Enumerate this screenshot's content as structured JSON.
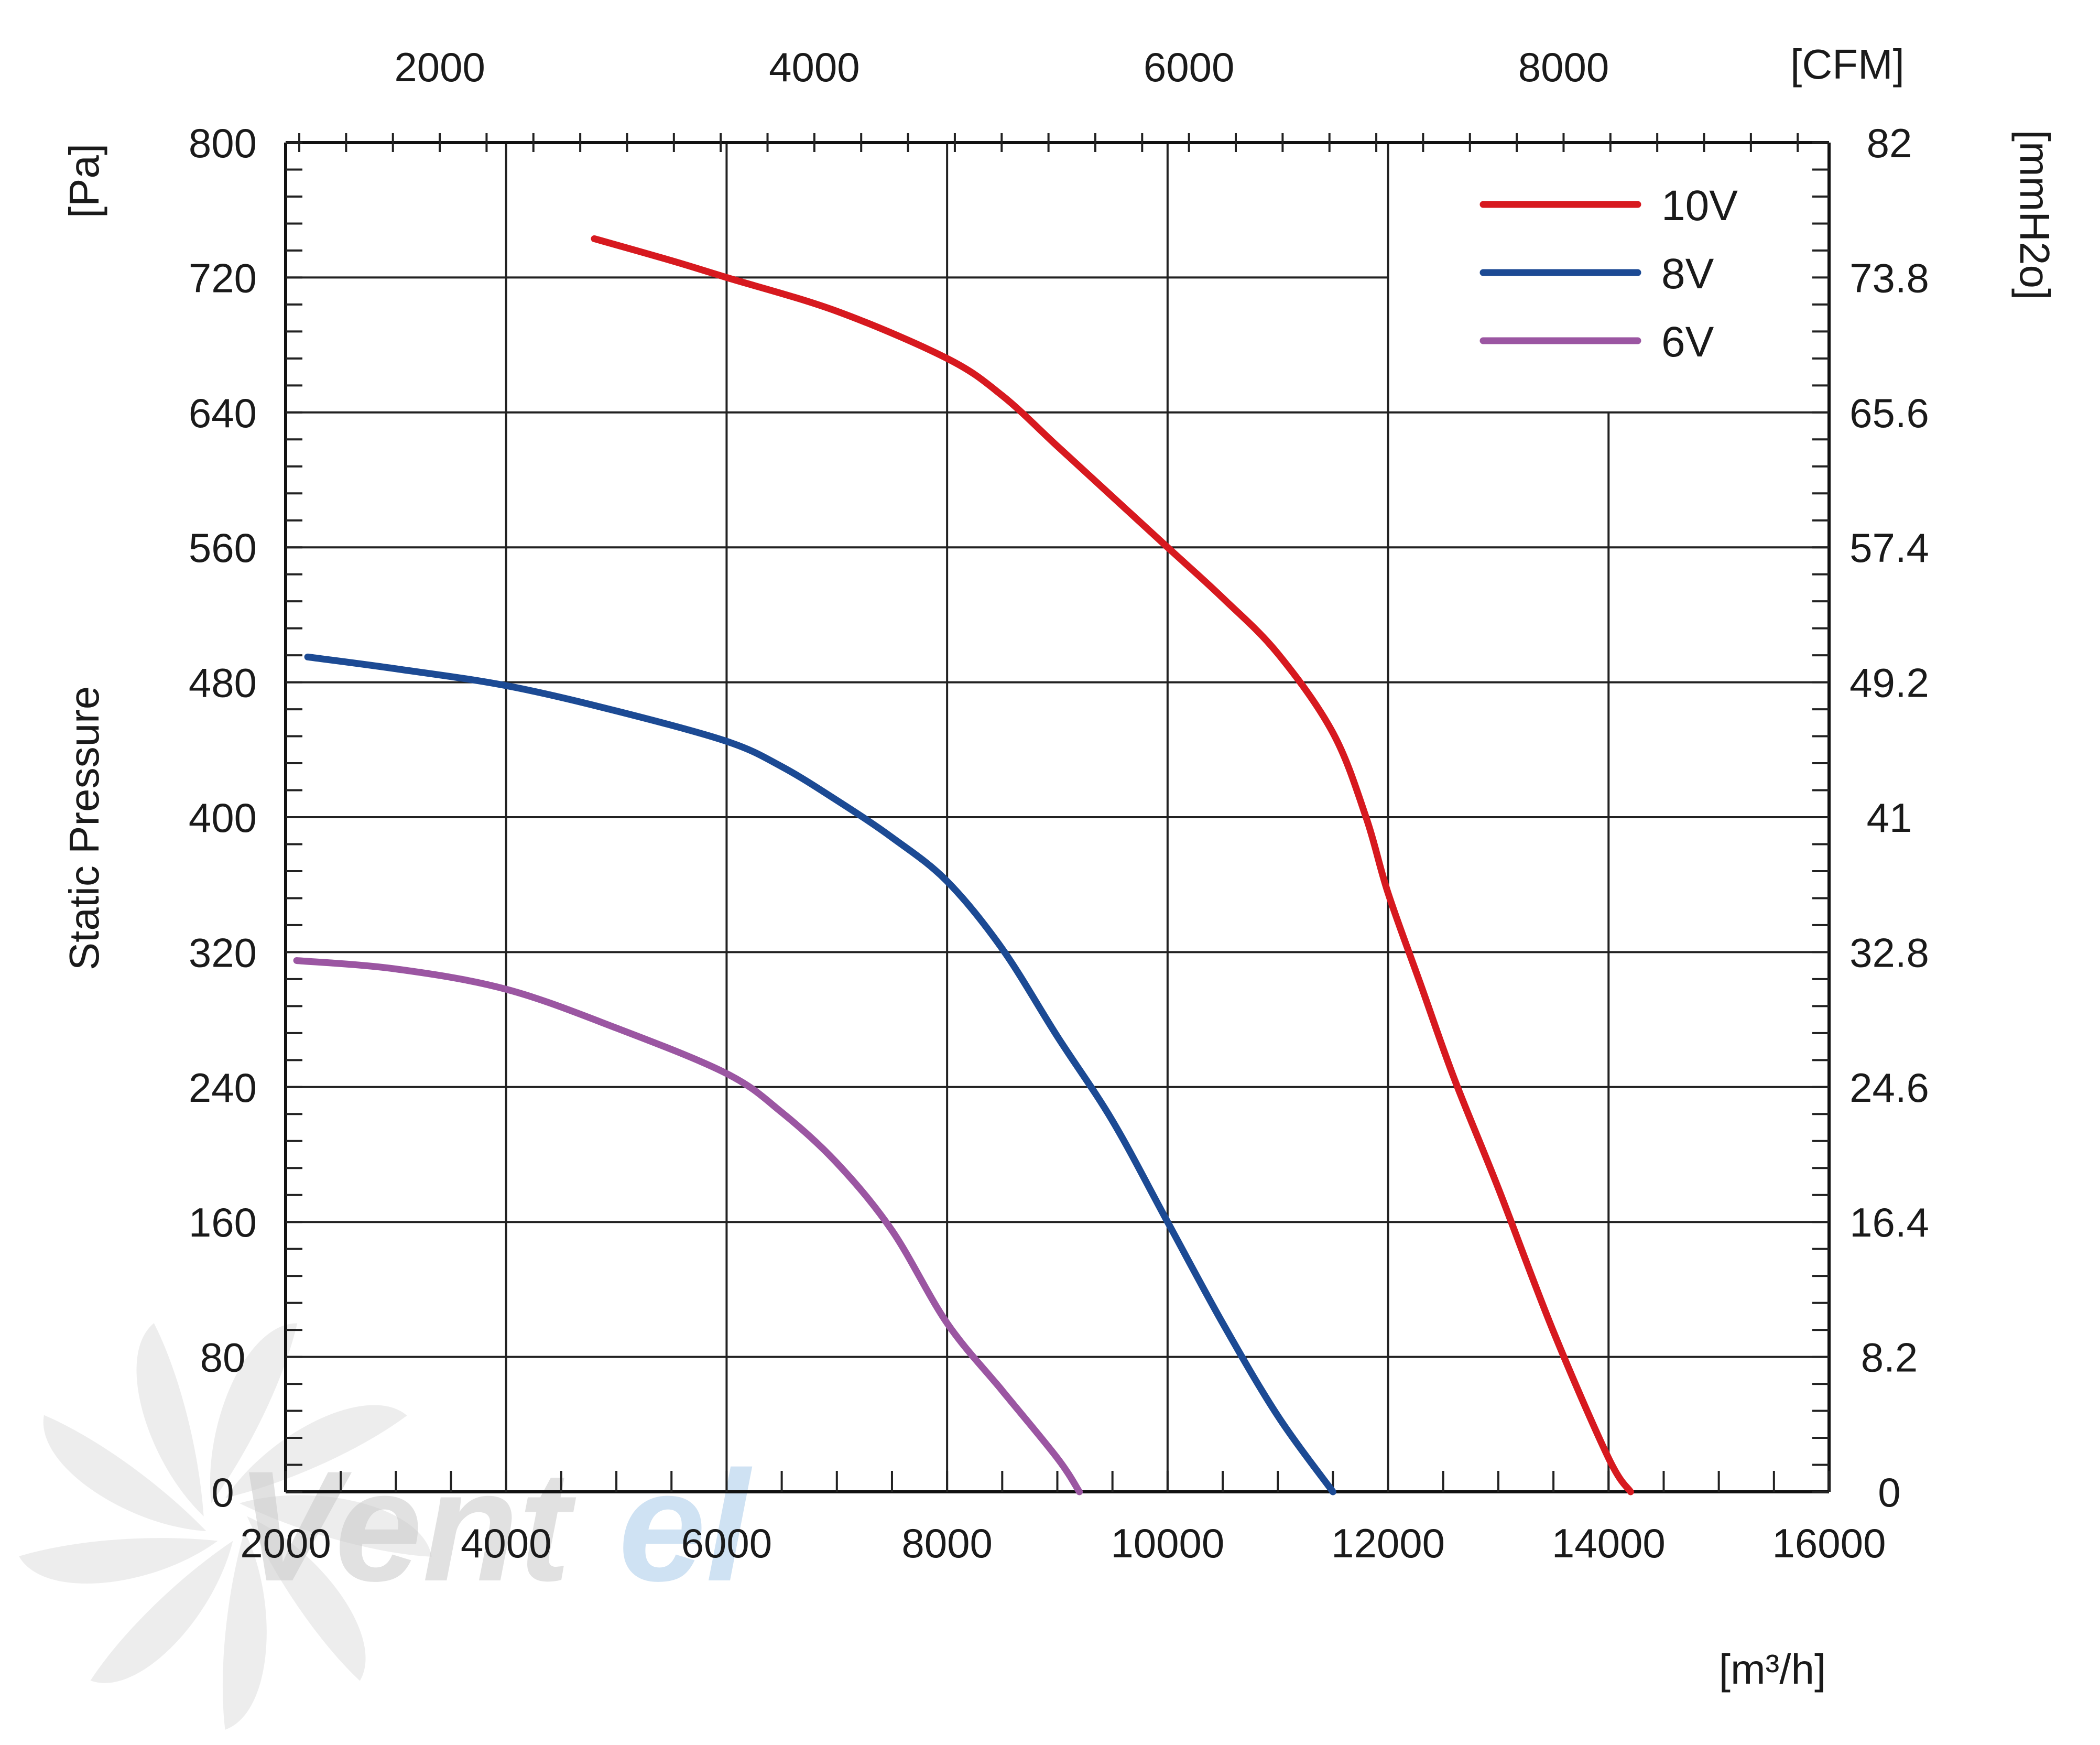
{
  "chart_data": {
    "type": "line",
    "title": "",
    "xlabel": "[m³/h]",
    "ylabel": "Static Pressure",
    "ylabel_unit": "[Pa]",
    "xlim": [
      2000,
      16000
    ],
    "ylim": [
      0,
      800
    ],
    "x_ticks": [
      2000,
      4000,
      6000,
      8000,
      10000,
      12000,
      14000,
      16000
    ],
    "x_tick_labels": [
      "2000",
      "4000",
      "6000",
      "8000",
      "10000",
      "12000",
      "14000",
      "16000"
    ],
    "y_ticks": [
      0,
      80,
      160,
      240,
      320,
      400,
      480,
      560,
      640,
      720,
      800
    ],
    "y_tick_labels": [
      "0",
      "80",
      "160",
      "240",
      "320",
      "400",
      "480",
      "560",
      "640",
      "720",
      "800"
    ],
    "top_axis": {
      "label": "[CFM]",
      "ticks": [
        2000,
        4000,
        6000,
        8000
      ],
      "tick_labels": [
        "2000",
        "4000",
        "6000",
        "8000"
      ],
      "m3h_per_unit": 1.699
    },
    "right_axis": {
      "label": "[mmH2o]",
      "ticks": [
        0,
        8.2,
        16.4,
        24.6,
        32.8,
        41,
        49.2,
        57.4,
        65.6,
        73.8,
        82
      ],
      "tick_labels": [
        "0",
        "8.2",
        "16.4",
        "24.6",
        "32.8",
        "41",
        "49.2",
        "57.4",
        "65.6",
        "73.8",
        "82"
      ]
    },
    "grid": true,
    "legend_position": "top-right",
    "series": [
      {
        "name": "10V",
        "color": "#d7191f",
        "x": [
          4800,
          5500,
          6000,
          7000,
          8000,
          8500,
          9000,
          9500,
          10000,
          10500,
          11000,
          11500,
          11800,
          12000,
          12300,
          12600,
          13000,
          13500,
          14000,
          14200
        ],
        "y": [
          743,
          730,
          720,
          700,
          672,
          650,
          620,
          590,
          560,
          530,
          497,
          450,
          400,
          355,
          300,
          245,
          180,
          95,
          20,
          0
        ]
      },
      {
        "name": "8V",
        "color": "#1c4a94",
        "x": [
          2200,
          3000,
          4000,
          5000,
          6000,
          6500,
          7000,
          7500,
          8000,
          8500,
          9000,
          9500,
          10000,
          10500,
          11000,
          11500
        ],
        "y": [
          495,
          488,
          478,
          463,
          445,
          430,
          410,
          388,
          362,
          322,
          270,
          220,
          160,
          100,
          45,
          0
        ]
      },
      {
        "name": "6V",
        "color": "#9b56a2",
        "x": [
          2100,
          3000,
          4000,
          5000,
          6000,
          6500,
          7000,
          7500,
          8000,
          8500,
          9000,
          9200
        ],
        "y": [
          315,
          310,
          298,
          275,
          248,
          225,
          195,
          155,
          100,
          60,
          20,
          0
        ]
      }
    ]
  },
  "watermark": {
    "text_a": "Vent",
    "text_b": "el"
  }
}
